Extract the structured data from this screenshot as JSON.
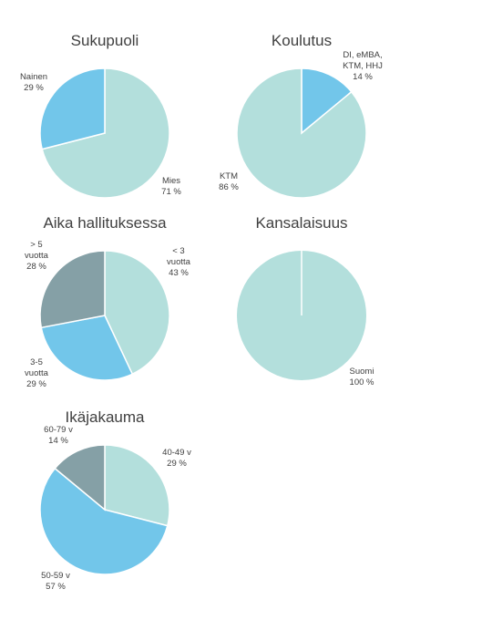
{
  "colors": {
    "light_teal": "#b3dfdc",
    "sky_blue": "#72c6ea",
    "slate": "#85a0a6",
    "text": "#404040"
  },
  "chart_data": [
    {
      "type": "pie",
      "title": "Sukupuoli",
      "slices": [
        {
          "label": "Mies",
          "value": 71,
          "value_label": "71 %",
          "color": "#b3dfdc"
        },
        {
          "label": "Nainen",
          "value": 29,
          "value_label": "29 %",
          "color": "#72c6ea"
        }
      ]
    },
    {
      "type": "pie",
      "title": "Koulutus",
      "slices": [
        {
          "label": "DI, eMBA, KTM, HHJ",
          "value": 14,
          "value_label": "14 %",
          "color": "#72c6ea"
        },
        {
          "label": "KTM",
          "value": 86,
          "value_label": "86 %",
          "color": "#b3dfdc"
        }
      ]
    },
    {
      "type": "pie",
      "title": "Aika hallituksessa",
      "slices": [
        {
          "label": "< 3 vuotta",
          "value": 43,
          "value_label": "43 %",
          "color": "#b3dfdc"
        },
        {
          "label": "3-5 vuotta",
          "value": 29,
          "value_label": "29 %",
          "color": "#72c6ea"
        },
        {
          "label": "> 5 vuotta",
          "value": 28,
          "value_label": "28 %",
          "color": "#85a0a6"
        }
      ]
    },
    {
      "type": "pie",
      "title": "Kansalaisuus",
      "slices": [
        {
          "label": "Suomi",
          "value": 100,
          "value_label": "100 %",
          "color": "#b3dfdc"
        }
      ]
    },
    {
      "type": "pie",
      "title": "Ikäjakauma",
      "slices": [
        {
          "label": "40-49 v",
          "value": 29,
          "value_label": "29 %",
          "color": "#b3dfdc"
        },
        {
          "label": "50-59 v",
          "value": 57,
          "value_label": "57 %",
          "color": "#72c6ea"
        },
        {
          "label": "60-79 v",
          "value": 14,
          "value_label": "14 %",
          "color": "#85a0a6"
        }
      ]
    }
  ]
}
